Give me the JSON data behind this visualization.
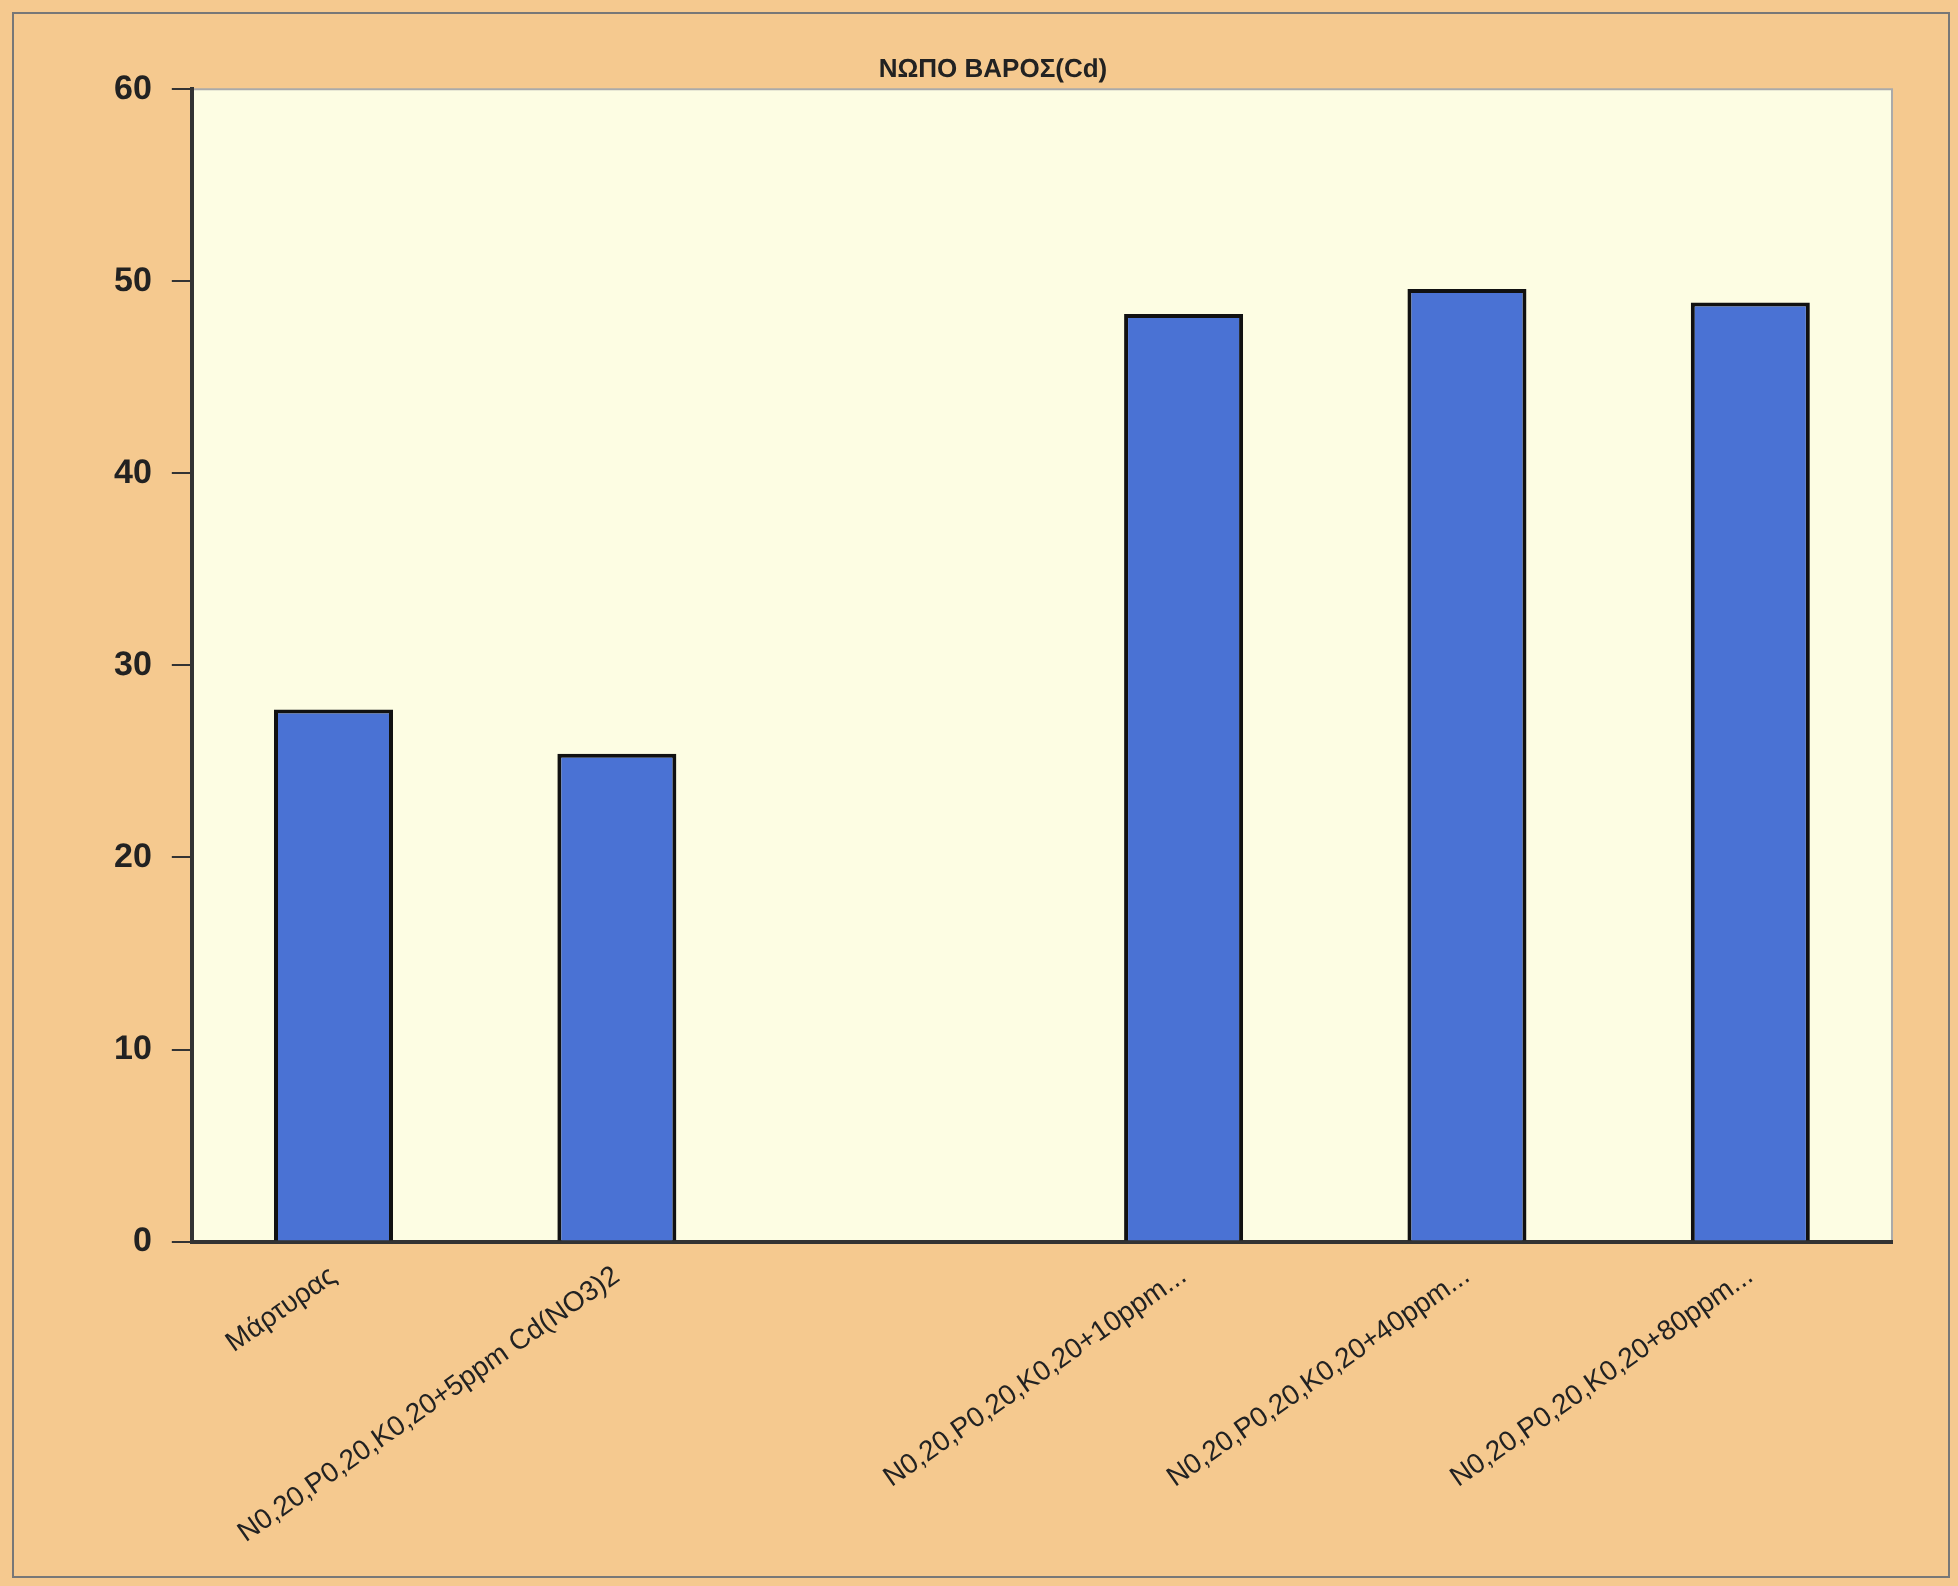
{
  "chart_data": {
    "type": "bar",
    "title": "ΝΩΠΟ ΒΑΡΟΣ(Cd)",
    "categories": [
      "Μάρτυρας",
      "N0,20,P0,20,K0,20+5ppm Cd(NO3)2",
      null,
      "N0,20,P0,20,K0,20+10ppm...",
      "N0,20,P0,20,K0,20+40ppm...",
      "N0,20,P0,20,K0,20+80ppm..."
    ],
    "values": [
      27.7,
      25.4,
      null,
      48.3,
      49.6,
      48.9
    ],
    "color": "#4a72d4",
    "ylim": [
      0,
      60
    ],
    "yticks": [
      0,
      10,
      20,
      30,
      40,
      50,
      60
    ],
    "grid": false,
    "legend": false
  }
}
